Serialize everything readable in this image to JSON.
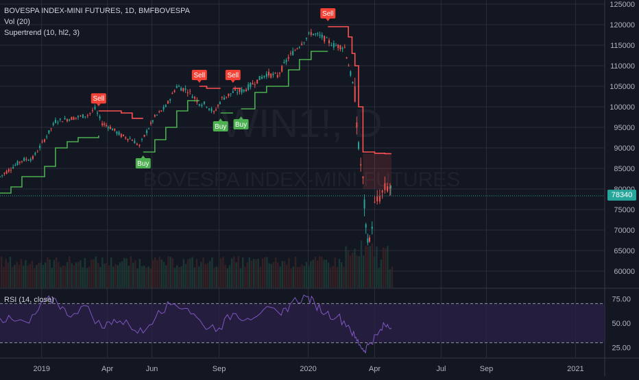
{
  "header": {
    "title": "BOVESPA INDEX-MINI FUTURES, 1D, BMFBOVESPA",
    "indicator_1": "Vol (20)",
    "indicator_2": "Supertrend (10, hl2, 3)",
    "rsi_label": "RSI (14, close)"
  },
  "watermark": {
    "symbol": "WIN1!, D",
    "name": "BOVESPA INDEX-MINI FUTURES"
  },
  "last_price": "78340",
  "colors": {
    "background": "#131722",
    "grid": "#2a2e39",
    "up": "#26a69a",
    "down": "#ef5350",
    "supertrend_up": "#4caf50",
    "supertrend_down": "#ff5252",
    "rsi_line": "#7e57c2",
    "rsi_band": "#2a1f45"
  },
  "chart_data": [
    {
      "type": "line",
      "title": "BOVESPA INDEX-MINI FUTURES, 1D, BMFBOVESPA",
      "y_axis_ticks": [
        "125000",
        "120000",
        "115000",
        "110000",
        "105000",
        "100000",
        "95000",
        "90000",
        "85000",
        "80000",
        "75000",
        "70000",
        "65000",
        "60000"
      ],
      "ylim": [
        56000,
        126000
      ],
      "x_ticks": [
        "2019",
        "Apr",
        "Jun",
        "Sep",
        "2020",
        "Apr",
        "Jul",
        "Sep",
        "2021"
      ],
      "x_tick_dates": [
        "2019-01-01",
        "2019-04-01",
        "2019-06-01",
        "2019-09-01",
        "2020-01-01",
        "2020-04-01",
        "2020-07-01",
        "2020-09-01",
        "2021-01-01"
      ],
      "xlim": [
        "2018-11-05",
        "2021-02-10"
      ],
      "last_value": 78340,
      "series": [
        {
          "values_dates": [
            "2018-11-05",
            "2018-11-20",
            "2018-12-05",
            "2018-12-20",
            "2019-01-05",
            "2019-01-20",
            "2019-02-05",
            "2019-02-20",
            "2019-03-05",
            "2019-03-15",
            "2019-03-25",
            "2019-04-05",
            "2019-04-20",
            "2019-05-05",
            "2019-05-15",
            "2019-05-25",
            "2019-06-05",
            "2019-06-20",
            "2019-07-05",
            "2019-07-20",
            "2019-08-05",
            "2019-08-15",
            "2019-08-25",
            "2019-09-05",
            "2019-09-20",
            "2019-10-05",
            "2019-10-20",
            "2019-11-05",
            "2019-11-20",
            "2019-12-05",
            "2019-12-20",
            "2020-01-05",
            "2020-01-20",
            "2020-02-05",
            "2020-02-20",
            "2020-02-28",
            "2020-03-05",
            "2020-03-10",
            "2020-03-16",
            "2020-03-20",
            "2020-03-25",
            "2020-04-01",
            "2020-04-08",
            "2020-04-15",
            "2020-04-22",
            "2020-04-24"
          ],
          "values": [
            83000,
            85000,
            87000,
            87500,
            92000,
            96500,
            97000,
            97500,
            98000,
            99500,
            96000,
            95000,
            93000,
            92000,
            90500,
            94000,
            97500,
            100000,
            105000,
            104000,
            101000,
            100500,
            98500,
            102000,
            103500,
            104000,
            106000,
            108000,
            107500,
            112000,
            115000,
            118000,
            117000,
            115000,
            114500,
            108000,
            103000,
            90000,
            82000,
            70000,
            67000,
            76000,
            78000,
            80000,
            80500,
            78340
          ]
        },
        {
          "name": "Supertrend (10, hl2, 3)",
          "segments": [
            {
              "trend": "up",
              "x": [
                "2018-11-05",
                "2018-11-20",
                "2018-12-05",
                "2018-12-20",
                "2019-01-05",
                "2019-01-20",
                "2019-02-05",
                "2019-02-20",
                "2019-03-05",
                "2019-03-20"
              ],
              "values": [
                79000,
                80500,
                83000,
                83000,
                85500,
                90000,
                91500,
                92500,
                92500,
                93000
              ]
            },
            {
              "trend": "down",
              "x": [
                "2019-03-20",
                "2019-04-05",
                "2019-04-20",
                "2019-05-05",
                "2019-05-20"
              ],
              "values": [
                99000,
                99000,
                98500,
                97200,
                97200
              ]
            },
            {
              "trend": "up",
              "x": [
                "2019-05-20",
                "2019-06-05",
                "2019-06-20",
                "2019-07-05",
                "2019-07-20",
                "2019-08-05"
              ],
              "values": [
                89000,
                92000,
                95000,
                99000,
                101500,
                101500
              ]
            },
            {
              "trend": "down",
              "x": [
                "2019-08-05",
                "2019-08-15",
                "2019-08-25",
                "2019-09-03"
              ],
              "values": [
                105000,
                104500,
                104500,
                104500
              ]
            },
            {
              "trend": "up",
              "x": [
                "2019-09-03",
                "2019-09-20"
              ],
              "values": [
                98500,
                98500
              ]
            },
            {
              "trend": "down",
              "x": [
                "2019-09-20",
                "2019-10-01"
              ],
              "values": [
                104500,
                104500
              ]
            },
            {
              "trend": "up",
              "x": [
                "2019-10-01",
                "2019-10-20",
                "2019-11-05",
                "2019-11-20",
                "2019-12-05",
                "2019-12-20",
                "2020-01-05",
                "2020-01-20",
                "2020-01-28"
              ],
              "values": [
                99500,
                103500,
                105000,
                105000,
                109000,
                111500,
                113500,
                113500,
                113500
              ]
            },
            {
              "trend": "down",
              "x": [
                "2020-01-28",
                "2020-02-10",
                "2020-02-20",
                "2020-02-25",
                "2020-03-01",
                "2020-03-05",
                "2020-03-10",
                "2020-03-16",
                "2020-03-20",
                "2020-04-01",
                "2020-04-15",
                "2020-04-24"
              ],
              "values": [
                119500,
                119500,
                119500,
                117000,
                113000,
                110000,
                100000,
                89000,
                89000,
                88700,
                88600,
                88600
              ]
            }
          ]
        }
      ],
      "signals": [
        {
          "label": "Sell",
          "date": "2019-03-20",
          "price": 99800,
          "side": "sell"
        },
        {
          "label": "Buy",
          "date": "2019-05-20",
          "price": 88500,
          "side": "buy"
        },
        {
          "label": "Sell",
          "date": "2019-08-05",
          "price": 105500,
          "side": "sell"
        },
        {
          "label": "Buy",
          "date": "2019-09-03",
          "price": 97500,
          "side": "buy"
        },
        {
          "label": "Sell",
          "date": "2019-09-20",
          "price": 105500,
          "side": "sell"
        },
        {
          "label": "Buy",
          "date": "2019-10-01",
          "price": 98000,
          "side": "buy"
        },
        {
          "label": "Sell",
          "date": "2020-01-28",
          "price": 120500,
          "side": "sell"
        }
      ]
    },
    {
      "type": "line",
      "title": "RSI (14, close)",
      "y_axis_ticks": [
        "75.00",
        "50.00",
        "25.00"
      ],
      "ylim": [
        15,
        85
      ],
      "bands": [
        30,
        70
      ],
      "series": [
        {
          "name": "RSI",
          "x": [
            "2018-11-05",
            "2018-11-25",
            "2018-12-15",
            "2019-01-05",
            "2019-01-20",
            "2019-02-05",
            "2019-03-01",
            "2019-03-25",
            "2019-04-10",
            "2019-05-01",
            "2019-05-20",
            "2019-06-10",
            "2019-07-01",
            "2019-07-20",
            "2019-08-10",
            "2019-09-01",
            "2019-09-20",
            "2019-10-10",
            "2019-11-01",
            "2019-11-25",
            "2019-12-10",
            "2019-12-30",
            "2020-01-10",
            "2020-01-25",
            "2020-02-10",
            "2020-02-25",
            "2020-03-05",
            "2020-03-12",
            "2020-03-18",
            "2020-03-25",
            "2020-04-05",
            "2020-04-15",
            "2020-04-24"
          ],
          "values": [
            55,
            52,
            50,
            72,
            75,
            58,
            68,
            45,
            54,
            48,
            40,
            63,
            70,
            65,
            48,
            45,
            60,
            55,
            64,
            58,
            72,
            77,
            70,
            60,
            57,
            48,
            35,
            28,
            22,
            30,
            38,
            48,
            45
          ]
        }
      ]
    }
  ]
}
